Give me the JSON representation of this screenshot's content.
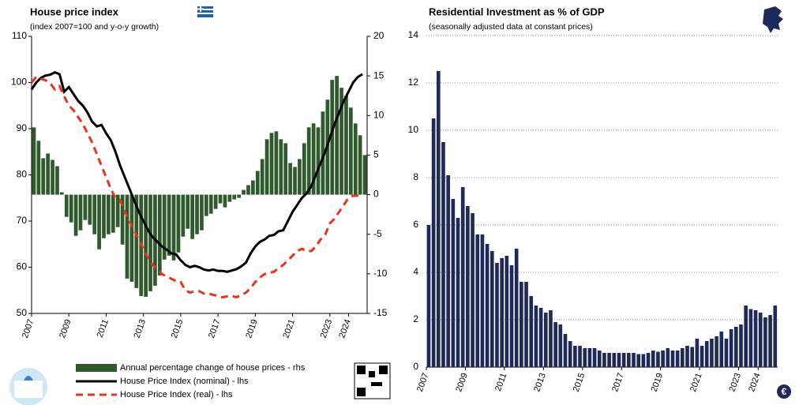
{
  "chart_data": [
    {
      "type": "combo",
      "title": "House price index",
      "subtitle": "(index 2007=100 and y-o-y growth)",
      "x": [
        2007,
        2007.25,
        2007.5,
        2007.75,
        2008,
        2008.25,
        2008.5,
        2008.75,
        2009,
        2009.25,
        2009.5,
        2009.75,
        2010,
        2010.25,
        2010.5,
        2010.75,
        2011,
        2011.25,
        2011.5,
        2011.75,
        2012,
        2012.25,
        2012.5,
        2012.75,
        2013,
        2013.25,
        2013.5,
        2013.75,
        2014,
        2014.25,
        2014.5,
        2014.75,
        2015,
        2015.25,
        2015.5,
        2015.75,
        2016,
        2016.25,
        2016.5,
        2016.75,
        2017,
        2017.25,
        2017.5,
        2017.75,
        2018,
        2018.25,
        2018.5,
        2018.75,
        2019,
        2019.25,
        2019.5,
        2019.75,
        2020,
        2020.25,
        2020.5,
        2020.75,
        2021,
        2021.25,
        2021.5,
        2021.75,
        2022,
        2022.25,
        2022.5,
        2022.75,
        2023,
        2023.25,
        2023.5,
        2023.75,
        2024,
        2024.25,
        2024.5,
        2024.75
      ],
      "xlim": [
        2007,
        2025
      ],
      "xticks": [
        2007,
        2009,
        2011,
        2013,
        2015,
        2017,
        2019,
        2021,
        2023,
        2024
      ],
      "ylim": [
        50,
        110
      ],
      "yticks": [
        50,
        60,
        70,
        80,
        90,
        100,
        110
      ],
      "y2lim": [
        -15,
        20
      ],
      "y2ticks": [
        -15,
        -10,
        -5,
        0,
        5,
        10,
        15,
        20
      ],
      "series": [
        {
          "name": "Annual percentage change of house prices - rhs",
          "kind": "bar",
          "axis": "y2",
          "color": "#2f5a2b",
          "values": [
            8.5,
            6.8,
            4.6,
            5.2,
            4.4,
            3.6,
            0.3,
            -2.8,
            -3.5,
            -5.2,
            -4.5,
            -3.2,
            -3.8,
            -5.0,
            -6.9,
            -5.5,
            -5.0,
            -4.8,
            -4.1,
            -6.3,
            -10.6,
            -11.0,
            -11.8,
            -12.8,
            -12.9,
            -12.2,
            -11.5,
            -10.2,
            -8.2,
            -7.7,
            -8.3,
            -7.3,
            -5.3,
            -4.3,
            -5.6,
            -5.0,
            -4.5,
            -2.7,
            -2.4,
            -1.8,
            -1.1,
            -1.6,
            -0.9,
            -0.6,
            -0.4,
            0.6,
            1.2,
            1.8,
            3.0,
            4.5,
            7.0,
            7.8,
            8.0,
            7.0,
            6.5,
            4.0,
            3.5,
            4.5,
            6.5,
            8.5,
            9.0,
            8.5,
            10.5,
            12.0,
            14.5,
            15.0,
            13.5,
            12.5,
            11.0,
            9.0,
            7.5,
            5.0
          ]
        },
        {
          "name": "House Price Index (nominal) - lhs",
          "kind": "line",
          "axis": "y",
          "color": "#000000",
          "dash": false,
          "values": [
            98.5,
            100.0,
            101.0,
            101.5,
            101.7,
            102.2,
            101.8,
            98.0,
            99.0,
            97.5,
            96.0,
            95.0,
            93.5,
            91.5,
            90.5,
            90.8,
            89.0,
            87.5,
            85.0,
            82.0,
            79.5,
            77.0,
            74.5,
            72.0,
            70.0,
            68.0,
            66.5,
            65.5,
            64.5,
            63.8,
            63.0,
            62.8,
            61.5,
            60.5,
            60.0,
            60.3,
            60.0,
            59.5,
            59.3,
            59.5,
            59.2,
            59.2,
            59.0,
            59.3,
            59.6,
            60.2,
            61.0,
            63.0,
            64.5,
            65.5,
            66.0,
            66.8,
            67.0,
            67.8,
            68.0,
            70.0,
            72.0,
            73.5,
            75.0,
            76.0,
            77.5,
            80.0,
            82.5,
            85.0,
            88.0,
            91.0,
            93.5,
            96.0,
            98.0,
            100.0,
            101.2,
            101.8
          ]
        },
        {
          "name": "House Price Index (real) - lhs",
          "kind": "line",
          "axis": "y",
          "color": "#e8341c",
          "dash": true,
          "values": [
            100.0,
            101.2,
            100.8,
            100.5,
            99.8,
            98.5,
            99.2,
            97.0,
            95.0,
            94.0,
            92.5,
            91.0,
            89.0,
            87.0,
            84.5,
            82.0,
            79.5,
            77.0,
            75.0,
            74.5,
            72.0,
            70.0,
            68.0,
            66.0,
            64.0,
            62.0,
            60.5,
            59.5,
            58.5,
            58.0,
            57.5,
            57.0,
            56.8,
            55.0,
            54.5,
            54.8,
            54.8,
            54.3,
            54.3,
            54.0,
            53.8,
            53.5,
            53.7,
            53.8,
            53.5,
            54.0,
            54.5,
            55.5,
            56.8,
            57.8,
            58.5,
            58.8,
            59.0,
            59.8,
            60.5,
            61.5,
            62.5,
            63.5,
            64.0,
            63.5,
            63.5,
            64.5,
            66.0,
            67.0,
            69.5,
            70.5,
            72.0,
            73.5,
            75.0,
            75.5,
            75.5,
            75.5
          ]
        }
      ]
    },
    {
      "type": "bar",
      "title": "Residential Investment as % of GDP",
      "subtitle": "(seasonally adjusted data at constant prices)",
      "x": [
        2007,
        2007.25,
        2007.5,
        2007.75,
        2008,
        2008.25,
        2008.5,
        2008.75,
        2009,
        2009.25,
        2009.5,
        2009.75,
        2010,
        2010.25,
        2010.5,
        2010.75,
        2011,
        2011.25,
        2011.5,
        2011.75,
        2012,
        2012.25,
        2012.5,
        2012.75,
        2013,
        2013.25,
        2013.5,
        2013.75,
        2014,
        2014.25,
        2014.5,
        2014.75,
        2015,
        2015.25,
        2015.5,
        2015.75,
        2016,
        2016.25,
        2016.5,
        2016.75,
        2017,
        2017.25,
        2017.5,
        2017.75,
        2018,
        2018.25,
        2018.5,
        2018.75,
        2019,
        2019.25,
        2019.5,
        2019.75,
        2020,
        2020.25,
        2020.5,
        2020.75,
        2021,
        2021.25,
        2021.5,
        2021.75,
        2022,
        2022.25,
        2022.5,
        2022.75,
        2023,
        2023.25,
        2023.5,
        2023.75,
        2024,
        2024.25,
        2024.5,
        2024.75
      ],
      "xlim": [
        2007,
        2025
      ],
      "xticks": [
        2007,
        2009,
        2011,
        2013,
        2015,
        2017,
        2019,
        2021,
        2023,
        2024
      ],
      "ylim": [
        0,
        14
      ],
      "yticks": [
        0,
        2,
        4,
        6,
        8,
        10,
        12,
        14
      ],
      "grid": true,
      "color": "#1f2a5c",
      "values": [
        6.0,
        10.5,
        12.5,
        9.5,
        8.1,
        7.1,
        6.3,
        7.6,
        6.8,
        6.5,
        5.6,
        5.6,
        5.2,
        4.9,
        4.4,
        4.6,
        4.7,
        4.3,
        5.0,
        3.6,
        3.6,
        3.0,
        2.6,
        2.5,
        2.3,
        2.4,
        1.9,
        1.8,
        1.4,
        1.1,
        0.9,
        0.9,
        0.8,
        0.8,
        0.8,
        0.7,
        0.6,
        0.6,
        0.6,
        0.6,
        0.6,
        0.6,
        0.6,
        0.55,
        0.55,
        0.6,
        0.7,
        0.65,
        0.7,
        0.8,
        0.7,
        0.7,
        0.8,
        0.9,
        0.85,
        1.2,
        0.9,
        1.1,
        1.2,
        1.3,
        1.5,
        1.2,
        1.6,
        1.7,
        1.8,
        2.6,
        2.45,
        2.4,
        2.3,
        2.1,
        2.2,
        2.6
      ]
    }
  ]
}
